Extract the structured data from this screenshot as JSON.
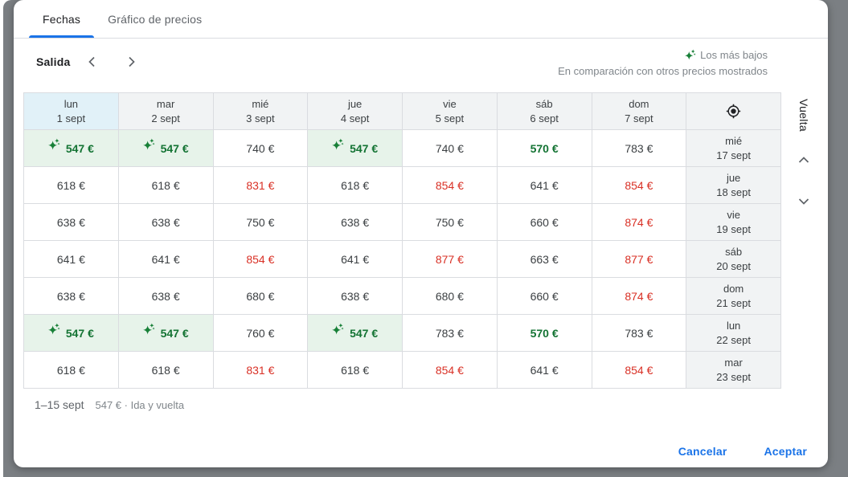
{
  "tabs": [
    {
      "label": "Fechas",
      "active": true
    },
    {
      "label": "Gráfico de precios",
      "active": false
    }
  ],
  "toolbar": {
    "departure_label": "Salida"
  },
  "legend": {
    "lowest_label": "Los más bajos",
    "comparison_label": "En comparación con otros precios mostrados"
  },
  "grid": {
    "columns": [
      {
        "day": "lun",
        "date": "1 sept",
        "selected": true
      },
      {
        "day": "mar",
        "date": "2 sept",
        "selected": false
      },
      {
        "day": "mié",
        "date": "3 sept",
        "selected": false
      },
      {
        "day": "jue",
        "date": "4 sept",
        "selected": false
      },
      {
        "day": "vie",
        "date": "5 sept",
        "selected": false
      },
      {
        "day": "sáb",
        "date": "6 sept",
        "selected": false
      },
      {
        "day": "dom",
        "date": "7 sept",
        "selected": false
      }
    ],
    "rows": [
      {
        "return_day": "mié",
        "return_date": "17 sept",
        "cells": [
          {
            "price": "547 €",
            "state": "lowest"
          },
          {
            "price": "547 €",
            "state": "lowest"
          },
          {
            "price": "740 €",
            "state": "normal"
          },
          {
            "price": "547 €",
            "state": "lowest"
          },
          {
            "price": "740 €",
            "state": "normal"
          },
          {
            "price": "570 €",
            "state": "low"
          },
          {
            "price": "783 €",
            "state": "normal"
          }
        ]
      },
      {
        "return_day": "jue",
        "return_date": "18 sept",
        "cells": [
          {
            "price": "618 €",
            "state": "normal"
          },
          {
            "price": "618 €",
            "state": "normal"
          },
          {
            "price": "831 €",
            "state": "high"
          },
          {
            "price": "618 €",
            "state": "normal"
          },
          {
            "price": "854 €",
            "state": "high"
          },
          {
            "price": "641 €",
            "state": "normal"
          },
          {
            "price": "854 €",
            "state": "high"
          }
        ]
      },
      {
        "return_day": "vie",
        "return_date": "19 sept",
        "cells": [
          {
            "price": "638 €",
            "state": "normal"
          },
          {
            "price": "638 €",
            "state": "normal"
          },
          {
            "price": "750 €",
            "state": "normal"
          },
          {
            "price": "638 €",
            "state": "normal"
          },
          {
            "price": "750 €",
            "state": "normal"
          },
          {
            "price": "660 €",
            "state": "normal"
          },
          {
            "price": "874 €",
            "state": "high"
          }
        ]
      },
      {
        "return_day": "sáb",
        "return_date": "20 sept",
        "cells": [
          {
            "price": "641 €",
            "state": "normal"
          },
          {
            "price": "641 €",
            "state": "normal"
          },
          {
            "price": "854 €",
            "state": "high"
          },
          {
            "price": "641 €",
            "state": "normal"
          },
          {
            "price": "877 €",
            "state": "high"
          },
          {
            "price": "663 €",
            "state": "normal"
          },
          {
            "price": "877 €",
            "state": "high"
          }
        ]
      },
      {
        "return_day": "dom",
        "return_date": "21 sept",
        "cells": [
          {
            "price": "638 €",
            "state": "normal"
          },
          {
            "price": "638 €",
            "state": "normal"
          },
          {
            "price": "680 €",
            "state": "normal"
          },
          {
            "price": "638 €",
            "state": "normal"
          },
          {
            "price": "680 €",
            "state": "normal"
          },
          {
            "price": "660 €",
            "state": "normal"
          },
          {
            "price": "874 €",
            "state": "high"
          }
        ]
      },
      {
        "return_day": "lun",
        "return_date": "22 sept",
        "cells": [
          {
            "price": "547 €",
            "state": "lowest"
          },
          {
            "price": "547 €",
            "state": "lowest"
          },
          {
            "price": "760 €",
            "state": "normal"
          },
          {
            "price": "547 €",
            "state": "lowest"
          },
          {
            "price": "783 €",
            "state": "normal"
          },
          {
            "price": "570 €",
            "state": "low"
          },
          {
            "price": "783 €",
            "state": "normal"
          }
        ]
      },
      {
        "return_day": "mar",
        "return_date": "23 sept",
        "cells": [
          {
            "price": "618 €",
            "state": "normal"
          },
          {
            "price": "618 €",
            "state": "normal"
          },
          {
            "price": "831 €",
            "state": "high"
          },
          {
            "price": "618 €",
            "state": "normal"
          },
          {
            "price": "854 €",
            "state": "high"
          },
          {
            "price": "641 €",
            "state": "normal"
          },
          {
            "price": "854 €",
            "state": "high"
          }
        ]
      }
    ]
  },
  "return_panel": {
    "label": "Vuelta"
  },
  "summary": {
    "range": "1–15 sept",
    "trip": "547 € · Ida y vuelta"
  },
  "actions": {
    "cancel": "Cancelar",
    "accept": "Aceptar"
  },
  "colors": {
    "accent_blue": "#1a73e8",
    "lowest_green": "#137333",
    "lowest_bg": "#e7f3ea",
    "high_red": "#d93025",
    "selected_header_bg": "#e1f1f8",
    "header_bg": "#f1f3f4"
  }
}
